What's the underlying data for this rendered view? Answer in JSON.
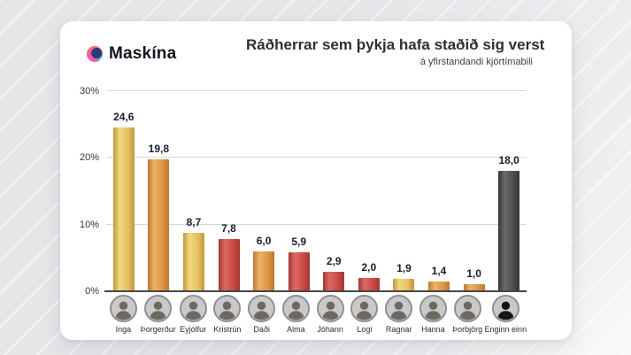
{
  "brand": {
    "name": "Maskína"
  },
  "chart_data": {
    "type": "bar",
    "title": "Ráðherrar sem þykja hafa staðið sig verst",
    "subtitle": "á yfirstandandi kjörtímabili",
    "ylim": [
      0,
      30
    ],
    "yticks": [
      0,
      10,
      20,
      30
    ],
    "ytick_labels": [
      "0%",
      "10%",
      "20%",
      "30%"
    ],
    "grid": true,
    "legend_position": "none",
    "decimal_separator": ",",
    "categories": [
      "Inga",
      "Þorgerður",
      "Eyjólfur",
      "Kristrún",
      "Daði",
      "Alma",
      "Jóhann",
      "Logi",
      "Ragnar",
      "Hanna",
      "Þorbjörg",
      "Enginn einn"
    ],
    "values": [
      24.6,
      19.8,
      8.7,
      7.8,
      6.0,
      5.9,
      2.9,
      2.0,
      1.9,
      1.4,
      1.0,
      18.0
    ],
    "value_labels": [
      "24,6",
      "19,8",
      "8,7",
      "7,8",
      "6,0",
      "5,9",
      "2,9",
      "2,0",
      "1,9",
      "1,4",
      "1,0",
      "18,0"
    ],
    "bar_colors": [
      "yellow",
      "orange",
      "yellow",
      "red",
      "orange",
      "red",
      "red",
      "red",
      "yellow",
      "orange",
      "orange",
      "dark"
    ],
    "avatar_types": [
      "photo",
      "photo",
      "photo",
      "photo",
      "photo",
      "photo",
      "photo",
      "photo",
      "photo",
      "photo",
      "photo",
      "silhouette"
    ],
    "palette": {
      "yellow": {
        "light": "#f2d87f",
        "base": "#e4c05f",
        "dark": "#c0973f"
      },
      "orange": {
        "light": "#ecb367",
        "base": "#dd9545",
        "dark": "#ba7830"
      },
      "red": {
        "light": "#dd6a64",
        "base": "#cb4845",
        "dark": "#a33733"
      },
      "dark": {
        "light": "#6a6a6a",
        "base": "#4e4e4e",
        "dark": "#353535"
      },
      "avatar_bg": "#c9c9c9",
      "avatar_photo_fill": "#6e6862",
      "avatar_silhouette_fill": "#151515"
    }
  }
}
